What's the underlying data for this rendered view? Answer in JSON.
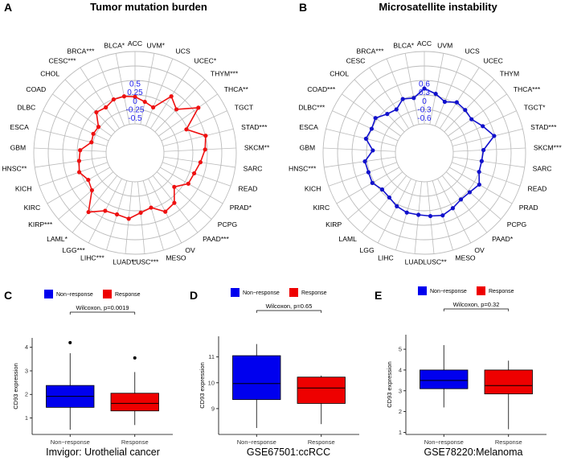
{
  "panels": {
    "A": "A",
    "B": "B",
    "C": "C",
    "D": "D",
    "E": "E"
  },
  "chart_data": [
    {
      "id": "A",
      "type": "radar",
      "title": "Tumor mutation burden",
      "ring_labels": [
        "0.5",
        "0.25",
        "0",
        "-0.25",
        "-0.5"
      ],
      "rlim": [
        -0.5,
        0.5
      ],
      "color": "#ee1111",
      "categories": [
        "ACC",
        "UVM*",
        "UCS",
        "UCEC*",
        "THYM***",
        "THCA**",
        "TGCT",
        "STAD***",
        "SKCM**",
        "SARC",
        "READ",
        "PRAD*",
        "PCPG",
        "PAAD***",
        "OV",
        "MESO",
        "LUSC***",
        "LUAD**",
        "LIHC***",
        "LGG***",
        "LAML*",
        "KIRP***",
        "KIRC",
        "KICH",
        "HNSC**",
        "GBM",
        "ESCA",
        "DLBC",
        "COAD",
        "CHOL",
        "CESC***",
        "BRCA***",
        "BLCA*"
      ],
      "values": [
        -0.08,
        -0.16,
        -0.22,
        0.14,
        0.0,
        0.35,
        -0.07,
        0.25,
        0.2,
        0.12,
        0.05,
        0.03,
        -0.16,
        0.07,
        0.12,
        -0.06,
        0.0,
        0.12,
        0.08,
        0.1,
        0.3,
        -0.06,
        -0.12,
        -0.02,
        -0.07,
        -0.1,
        -0.3,
        -0.28,
        -0.3,
        -0.08,
        -0.12,
        -0.05,
        -0.05
      ]
    },
    {
      "id": "B",
      "type": "radar",
      "title": "Microsatellite instability",
      "ring_labels": [
        "0.6",
        "0.3",
        "0",
        "-0.3",
        "-0.6"
      ],
      "rlim": [
        -0.6,
        0.6
      ],
      "color": "#1111cc",
      "categories": [
        "ACC",
        "UVM",
        "UCS",
        "UCEC",
        "THYM",
        "THCA***",
        "TGCT*",
        "STAD***",
        "SKCM***",
        "SARC",
        "READ",
        "PRAD",
        "PCPG",
        "PAAD*",
        "OV",
        "MESO",
        "LUSC**",
        "LUAD",
        "LIHC",
        "LGG",
        "LAML",
        "KIRP",
        "KIRC",
        "KICH",
        "HNSC***",
        "GBM",
        "ESCA",
        "DLBC***",
        "COAD***",
        "CHOL",
        "CESC",
        "BRCA***",
        "BLCA*"
      ],
      "values": [
        0.1,
        0.0,
        -0.12,
        0.0,
        -0.02,
        -0.05,
        0.1,
        0.28,
        -0.02,
        -0.05,
        -0.05,
        0.08,
        0.0,
        -0.02,
        0.05,
        0.12,
        0.08,
        0.05,
        0.05,
        0.0,
        -0.08,
        -0.1,
        0.0,
        -0.02,
        0.0,
        -0.2,
        0.0,
        -0.05,
        0.0,
        -0.15,
        -0.2,
        -0.05,
        -0.1
      ]
    },
    {
      "id": "C",
      "type": "box",
      "ylabel": "CD93 expression",
      "caption": "Imvigor: Urothelial cancer",
      "pvalue": "Wilcoxon, p=0.0019",
      "ylim": [
        0.3,
        4.4
      ],
      "yticks": [
        1,
        2,
        3,
        4
      ],
      "legend": [
        "Non−response",
        "Response"
      ],
      "categories": [
        "Non−response",
        "Response"
      ],
      "boxes": [
        {
          "min": 0.5,
          "q1": 1.45,
          "median": 1.92,
          "q3": 2.38,
          "max": 3.75,
          "outliers": [
            4.2
          ]
        },
        {
          "min": 0.7,
          "q1": 1.3,
          "median": 1.62,
          "q3": 2.05,
          "max": 2.95,
          "outliers": [
            3.55
          ]
        }
      ]
    },
    {
      "id": "D",
      "type": "box",
      "ylabel": "CD93 expression",
      "caption": "GSE67501:ccRCC",
      "pvalue": "Wilcoxon, p=0.65",
      "ylim": [
        8.0,
        11.8
      ],
      "yticks": [
        9,
        10,
        11
      ],
      "legend": [
        "Non−response",
        "Response"
      ],
      "categories": [
        "Non−response",
        "Response"
      ],
      "boxes": [
        {
          "min": 8.25,
          "q1": 9.35,
          "median": 9.97,
          "q3": 11.05,
          "max": 11.5,
          "outliers": []
        },
        {
          "min": 8.4,
          "q1": 9.2,
          "median": 9.8,
          "q3": 10.22,
          "max": 10.28,
          "outliers": []
        }
      ]
    },
    {
      "id": "E",
      "type": "box",
      "ylabel": "CD93 expression",
      "caption": "GSE78220:Melanoma",
      "pvalue": "Wilcoxon, p=0.32",
      "ylim": [
        0.9,
        5.7
      ],
      "yticks": [
        1,
        2,
        3,
        4,
        5
      ],
      "legend": [
        "Non−response",
        "Response"
      ],
      "categories": [
        "Non−response",
        "Response"
      ],
      "boxes": [
        {
          "min": 2.2,
          "q1": 3.1,
          "median": 3.5,
          "q3": 4.0,
          "max": 5.2,
          "outliers": []
        },
        {
          "min": 1.15,
          "q1": 2.85,
          "median": 3.25,
          "q3": 4.0,
          "max": 4.45,
          "outliers": []
        }
      ]
    }
  ],
  "colors": {
    "non_response": "#0000ee",
    "response": "#ee0000",
    "grid": "#bbbbbb"
  }
}
